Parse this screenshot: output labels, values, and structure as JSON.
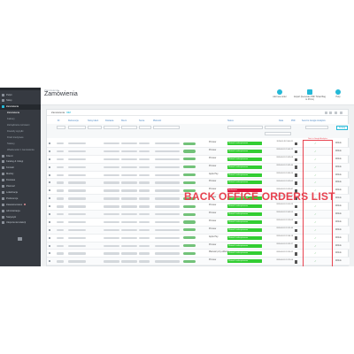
{
  "overlay_title": "BACK OFFICE ORDERS LIST",
  "header": {
    "breadcrumb": "Zamówienia",
    "page_title": "Zamówienia",
    "tools": [
      {
        "label": "Add new order",
        "icon": "add-circle-icon"
      },
      {
        "label": "Export (Generate PDF Ticket Bag to Prints)",
        "icon": "export-icon"
      },
      {
        "label": "Help",
        "icon": "help-icon"
      }
    ]
  },
  "sidebar": {
    "items": [
      {
        "label": "Pulpit",
        "icon": "dashboard-icon"
      },
      {
        "label": "Sklep",
        "icon": "shop-icon"
      },
      {
        "label": "Zamówienia",
        "icon": "orders-icon",
        "active": true
      },
      {
        "label": "Zamówienia",
        "sub": true,
        "current": true
      },
      {
        "label": "Faktury",
        "sub": true
      },
      {
        "label": "Zarządzanie zwrotami",
        "sub": true
      },
      {
        "label": "Dowody wysyłki",
        "sub": true
      },
      {
        "label": "Druki kredytowe",
        "sub": true
      },
      {
        "label": "Statusy",
        "sub": true
      },
      {
        "label": "Wiadomości z zamówienia",
        "sub": true
      },
      {
        "label": "Klienci",
        "icon": "customers-icon"
      },
      {
        "label": "Katalog & Usługi",
        "icon": "catalog-icon"
      },
      {
        "label": "Kontakt",
        "icon": "contact-icon"
      },
      {
        "label": "Moduły",
        "icon": "modules-icon"
      },
      {
        "label": "Dostawa",
        "icon": "truck-icon"
      },
      {
        "label": "Płatność",
        "icon": "card-icon"
      },
      {
        "label": "Lokalizacja",
        "icon": "globe-icon"
      },
      {
        "label": "Preferencje",
        "icon": "settings-icon"
      },
      {
        "label": "Zaawansowane",
        "icon": "advanced-icon",
        "dot": true
      },
      {
        "label": "Administracja",
        "icon": "admin-icon"
      },
      {
        "label": "Statystyki",
        "icon": "stats-icon"
      },
      {
        "label": "Ulepszenia kolekcji",
        "icon": "star-icon"
      }
    ]
  },
  "panel": {
    "title": "Zamówienia",
    "count": "102",
    "columns": [
      "ID",
      "Referencja",
      "Nowy klient",
      "Dostawa",
      "Klient",
      "Suma",
      "Płatność",
      "Status",
      "Data",
      "PDF",
      "Send to Google Analytics"
    ],
    "search_label": "Szukaj",
    "view_label": "Widok",
    "callout_label": "Sent to Google Analytics"
  },
  "rows": [
    {
      "payment": "Przelew",
      "status": "Płatność zaakceptowana",
      "status_color": "#32cd32",
      "date": "2020-05-19 13:44:11",
      "view": "Widok"
    },
    {
      "payment": "Przelew",
      "status": "Płatność zaakceptowana",
      "status_color": "#32cd32",
      "date": "2020-05-19 13:41:22",
      "view": "Widok"
    },
    {
      "payment": "Przelew",
      "status": "Płatność zaakceptowana",
      "status_color": "#32cd32",
      "date": "2020-05-19 13:39:08",
      "view": "Widok"
    },
    {
      "payment": "Przelew",
      "status": "Płatność zaakceptowana",
      "status_color": "#32cd32",
      "date": "2020-05-19 13:35:40",
      "view": "Widok"
    },
    {
      "payment": "Apple Pay",
      "status": "Płatność zaakceptowana",
      "status_color": "#32cd32",
      "date": "2020-05-19 13:30:14",
      "view": "Widok"
    },
    {
      "payment": "Przelew",
      "status": "Płatność zaakceptowana",
      "status_color": "#32cd32",
      "date": "2020-05-19 13:25:01",
      "view": "Widok"
    },
    {
      "payment": "Przelew",
      "status": "Anulowane",
      "status_color": "#dc143c",
      "date": "2020-05-19 13:20:47",
      "view": "Widok"
    },
    {
      "payment": "Przelew",
      "status": "Płatność zaakceptowana",
      "status_color": "#32cd32",
      "date": "2020-05-19 13:14:32",
      "view": "Widok"
    },
    {
      "payment": "Przelew",
      "status": "Płatność zaakceptowana",
      "status_color": "#32cd32",
      "date": "2020-05-19 13:10:19",
      "view": "Widok"
    },
    {
      "payment": "Przelew",
      "status": "Płatność zaakceptowana",
      "status_color": "#32cd32",
      "date": "2020-05-19 13:05:55",
      "view": "Widok"
    },
    {
      "payment": "Przelew",
      "status": "Płatność zaakceptowana",
      "status_color": "#32cd32",
      "date": "2020-05-19 12:59:03",
      "view": "Widok"
    },
    {
      "payment": "Przelew",
      "status": "Płatność zaakceptowana",
      "status_color": "#32cd32",
      "date": "2020-05-19 12:51:40",
      "view": "Widok"
    },
    {
      "payment": "Apple Pay",
      "status": "Płatność zaakceptowana",
      "status_color": "#32cd32",
      "date": "2020-05-19 12:44:18",
      "view": "Widok"
    },
    {
      "payment": "Przelew",
      "status": "Płatność zaakceptowana",
      "status_color": "#32cd32",
      "date": "2020-05-19 12:39:27",
      "view": "Widok"
    },
    {
      "payment": "Płatność przy odbiorze",
      "status": "Płatność zaakceptowana",
      "status_color": "#32cd32",
      "date": "2020-05-19 12:30:12",
      "view": "Widok"
    },
    {
      "payment": "Przelew",
      "status": "Płatność zaakceptowana",
      "status_color": "#32cd32",
      "date": "2020-05-19 12:22:06",
      "view": "Widok"
    }
  ],
  "colors": {
    "accent": "#25b9d7",
    "sidebar": "#363a41",
    "callout": "#e8424f"
  }
}
